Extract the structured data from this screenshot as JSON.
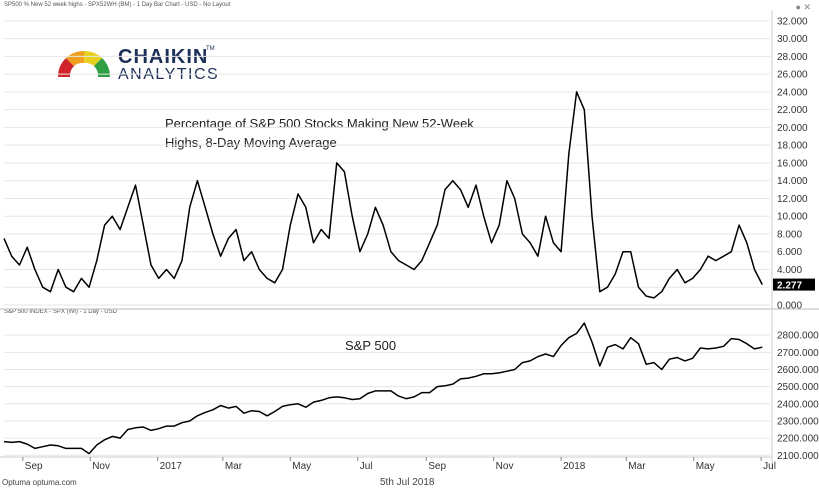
{
  "header": {
    "top_chart_title": "SP500 % New 52 week highs - SPX52WH (BM) - 1 Day Bar Chart - USD - No Layout",
    "bottom_chart_title": "S&P 500 INDEX - SPX (WI) - 1 Day - USD"
  },
  "logo": {
    "line1": "CHAIKIN",
    "line2": "ANALYTICS",
    "tm": "TM"
  },
  "annotations": {
    "top": "Percentage of S&P 500 Stocks Making New 52-Week Highs, 8-Day Moving Average",
    "bottom": "S&P 500"
  },
  "footer": {
    "brand": "Optuma optuma.com",
    "date": "5th Jul 2018"
  },
  "colors": {
    "line": "#000000",
    "last_value_box": "#000000",
    "grid": "#e6e6e6"
  },
  "chart_data": [
    {
      "type": "line",
      "x": [
        "2016-08-15",
        "2016-08-22",
        "2016-08-29",
        "2016-09-05",
        "2016-09-12",
        "2016-09-19",
        "2016-09-26",
        "2016-10-03",
        "2016-10-10",
        "2016-10-17",
        "2016-10-24",
        "2016-10-31",
        "2016-11-07",
        "2016-11-14",
        "2016-11-21",
        "2016-11-28",
        "2016-12-05",
        "2016-12-12",
        "2016-12-19",
        "2016-12-26",
        "2017-01-02",
        "2017-01-09",
        "2017-01-16",
        "2017-01-23",
        "2017-01-30",
        "2017-02-06",
        "2017-02-13",
        "2017-02-20",
        "2017-02-27",
        "2017-03-06",
        "2017-03-13",
        "2017-03-20",
        "2017-03-27",
        "2017-04-03",
        "2017-04-10",
        "2017-04-17",
        "2017-04-24",
        "2017-05-01",
        "2017-05-08",
        "2017-05-15",
        "2017-05-22",
        "2017-05-29",
        "2017-06-05",
        "2017-06-12",
        "2017-06-19",
        "2017-06-26",
        "2017-07-03",
        "2017-07-10",
        "2017-07-17",
        "2017-07-24",
        "2017-07-31",
        "2017-08-07",
        "2017-08-14",
        "2017-08-21",
        "2017-08-28",
        "2017-09-04",
        "2017-09-11",
        "2017-09-18",
        "2017-09-25",
        "2017-10-02",
        "2017-10-09",
        "2017-10-16",
        "2017-10-23",
        "2017-10-30",
        "2017-11-06",
        "2017-11-13",
        "2017-11-20",
        "2017-11-27",
        "2017-12-04",
        "2017-12-11",
        "2017-12-18",
        "2017-12-25",
        "2018-01-01",
        "2018-01-08",
        "2018-01-15",
        "2018-01-22",
        "2018-01-29",
        "2018-02-05",
        "2018-02-12",
        "2018-02-19",
        "2018-02-26",
        "2018-03-05",
        "2018-03-12",
        "2018-03-19",
        "2018-03-26",
        "2018-04-02",
        "2018-04-09",
        "2018-04-16",
        "2018-04-23",
        "2018-04-30",
        "2018-05-07",
        "2018-05-14",
        "2018-05-21",
        "2018-05-28",
        "2018-06-04",
        "2018-06-11",
        "2018-06-18",
        "2018-06-25",
        "2018-07-02"
      ],
      "series": [
        {
          "values": [
            7.5,
            5.5,
            4.5,
            6.5,
            4,
            2,
            1.5,
            4,
            2,
            1.5,
            3,
            2,
            5,
            9,
            10,
            8.5,
            11,
            13.5,
            9,
            4.5,
            3,
            4,
            3,
            5,
            11,
            14,
            11,
            8,
            5.5,
            7.5,
            8.5,
            5,
            6,
            4,
            3,
            2.5,
            4,
            9,
            12.5,
            11,
            7,
            8.5,
            7.5,
            16,
            15,
            10,
            6,
            8,
            11,
            9,
            6,
            5,
            4.5,
            4,
            5,
            7,
            9,
            13,
            14,
            13,
            11,
            13.5,
            10,
            7,
            9,
            14,
            12,
            8,
            7,
            5.5,
            10,
            7,
            6,
            17,
            24,
            22,
            10,
            1.5,
            2,
            3.5,
            6,
            6,
            2,
            1,
            0.8,
            1.5,
            3,
            4,
            2.5,
            3,
            4,
            5.5,
            5,
            5.5,
            6,
            9,
            7,
            4,
            2.3
          ]
        }
      ],
      "ylim": [
        0,
        33
      ],
      "y_ticks": [
        "0.000",
        "2.000",
        "4.000",
        "6.000",
        "8.000",
        "10.000",
        "12.000",
        "14.000",
        "16.000",
        "18.000",
        "20.000",
        "22.000",
        "24.000",
        "26.000",
        "28.000",
        "30.000",
        "32.000"
      ],
      "last_value_label": "2.277",
      "grid": true
    },
    {
      "type": "line",
      "x": [
        "2016-08-15",
        "2016-08-22",
        "2016-08-29",
        "2016-09-05",
        "2016-09-12",
        "2016-09-19",
        "2016-09-26",
        "2016-10-03",
        "2016-10-10",
        "2016-10-17",
        "2016-10-24",
        "2016-10-31",
        "2016-11-07",
        "2016-11-14",
        "2016-11-21",
        "2016-11-28",
        "2016-12-05",
        "2016-12-12",
        "2016-12-19",
        "2016-12-26",
        "2017-01-02",
        "2017-01-09",
        "2017-01-16",
        "2017-01-23",
        "2017-01-30",
        "2017-02-06",
        "2017-02-13",
        "2017-02-20",
        "2017-02-27",
        "2017-03-06",
        "2017-03-13",
        "2017-03-20",
        "2017-03-27",
        "2017-04-03",
        "2017-04-10",
        "2017-04-17",
        "2017-04-24",
        "2017-05-01",
        "2017-05-08",
        "2017-05-15",
        "2017-05-22",
        "2017-05-29",
        "2017-06-05",
        "2017-06-12",
        "2017-06-19",
        "2017-06-26",
        "2017-07-03",
        "2017-07-10",
        "2017-07-17",
        "2017-07-24",
        "2017-07-31",
        "2017-08-07",
        "2017-08-14",
        "2017-08-21",
        "2017-08-28",
        "2017-09-04",
        "2017-09-11",
        "2017-09-18",
        "2017-09-25",
        "2017-10-02",
        "2017-10-09",
        "2017-10-16",
        "2017-10-23",
        "2017-10-30",
        "2017-11-06",
        "2017-11-13",
        "2017-11-20",
        "2017-11-27",
        "2017-12-04",
        "2017-12-11",
        "2017-12-18",
        "2017-12-25",
        "2018-01-01",
        "2018-01-08",
        "2018-01-15",
        "2018-01-22",
        "2018-01-29",
        "2018-02-05",
        "2018-02-12",
        "2018-02-19",
        "2018-02-26",
        "2018-03-05",
        "2018-03-12",
        "2018-03-19",
        "2018-03-26",
        "2018-04-02",
        "2018-04-09",
        "2018-04-16",
        "2018-04-23",
        "2018-04-30",
        "2018-05-07",
        "2018-05-14",
        "2018-05-21",
        "2018-05-28",
        "2018-06-04",
        "2018-06-11",
        "2018-06-18",
        "2018-06-25",
        "2018-07-02"
      ],
      "series": [
        {
          "values": [
            2180,
            2175,
            2180,
            2165,
            2140,
            2150,
            2160,
            2155,
            2140,
            2140,
            2140,
            2110,
            2160,
            2190,
            2210,
            2200,
            2250,
            2260,
            2265,
            2245,
            2255,
            2270,
            2270,
            2290,
            2300,
            2330,
            2350,
            2365,
            2390,
            2375,
            2385,
            2345,
            2360,
            2355,
            2330,
            2355,
            2385,
            2395,
            2400,
            2380,
            2410,
            2420,
            2435,
            2440,
            2435,
            2425,
            2430,
            2460,
            2475,
            2475,
            2475,
            2445,
            2430,
            2440,
            2465,
            2465,
            2500,
            2505,
            2515,
            2545,
            2550,
            2560,
            2575,
            2575,
            2580,
            2590,
            2600,
            2640,
            2650,
            2675,
            2690,
            2675,
            2740,
            2785,
            2810,
            2870,
            2760,
            2620,
            2730,
            2745,
            2720,
            2785,
            2750,
            2630,
            2640,
            2600,
            2660,
            2670,
            2650,
            2665,
            2725,
            2720,
            2725,
            2735,
            2780,
            2775,
            2750,
            2720,
            2730
          ]
        }
      ],
      "ylim": [
        2090,
        2900
      ],
      "y_ticks": [
        "2100.000",
        "2200.000",
        "2300.000",
        "2400.000",
        "2500.000",
        "2600.000",
        "2700.000",
        "2800.000"
      ],
      "x_ticks": [
        "Sep",
        "Nov",
        "2017",
        "Mar",
        "May",
        "Jul",
        "Sep",
        "Nov",
        "2018",
        "Mar",
        "May",
        "Jul"
      ],
      "x_tick_dates": [
        "2016-09-01",
        "2016-11-01",
        "2017-01-01",
        "2017-03-01",
        "2017-05-01",
        "2017-07-01",
        "2017-09-01",
        "2017-11-01",
        "2018-01-01",
        "2018-03-01",
        "2018-05-01",
        "2018-07-01"
      ],
      "grid": true
    }
  ]
}
